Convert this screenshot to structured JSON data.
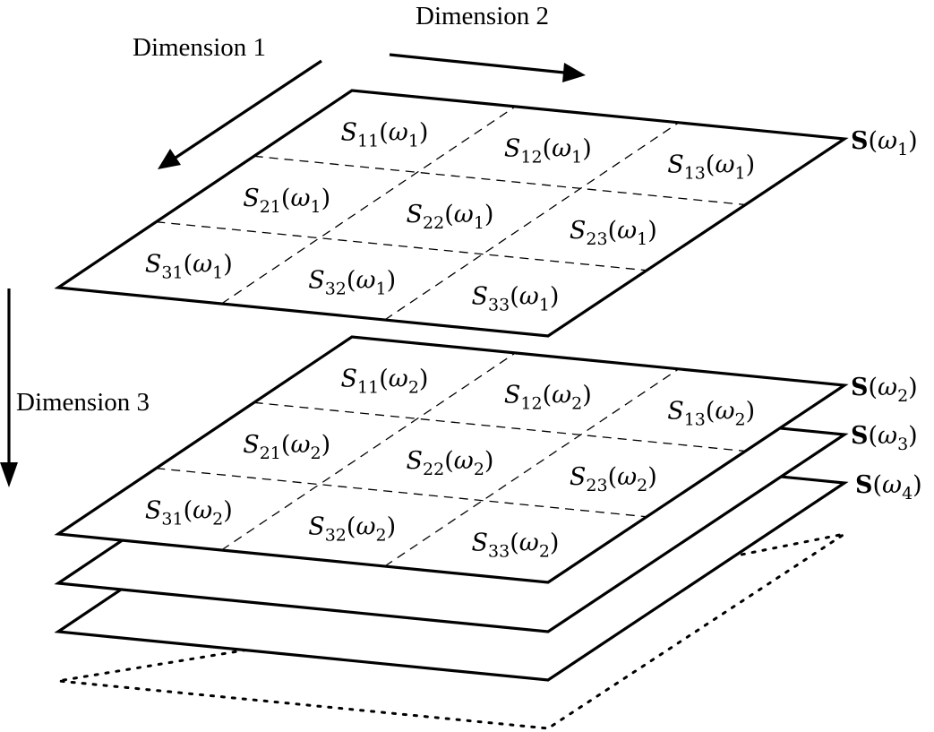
{
  "arrows": [
    {
      "id": "dim1",
      "label": "Dimension 1"
    },
    {
      "id": "dim2",
      "label": "Dimension 2"
    },
    {
      "id": "dim3",
      "label": "Dimension 3"
    }
  ],
  "layers": [
    {
      "id": "omega1",
      "matrix": "S",
      "arg": "ω",
      "arg_sub": "1",
      "show_cells": true,
      "cells": [
        [
          "11",
          "12",
          "13"
        ],
        [
          "21",
          "22",
          "23"
        ],
        [
          "31",
          "32",
          "33"
        ]
      ]
    },
    {
      "id": "omega2",
      "matrix": "S",
      "arg": "ω",
      "arg_sub": "2",
      "show_cells": true,
      "cells": [
        [
          "11",
          "12",
          "13"
        ],
        [
          "21",
          "22",
          "23"
        ],
        [
          "31",
          "32",
          "33"
        ]
      ]
    },
    {
      "id": "omega3",
      "matrix": "S",
      "arg": "ω",
      "arg_sub": "3",
      "show_cells": false
    },
    {
      "id": "omega4",
      "matrix": "S",
      "arg": "ω",
      "arg_sub": "4",
      "show_cells": false
    }
  ],
  "cell_symbol": "S",
  "colors": {
    "stroke": "#000000",
    "fill": "#ffffff"
  }
}
